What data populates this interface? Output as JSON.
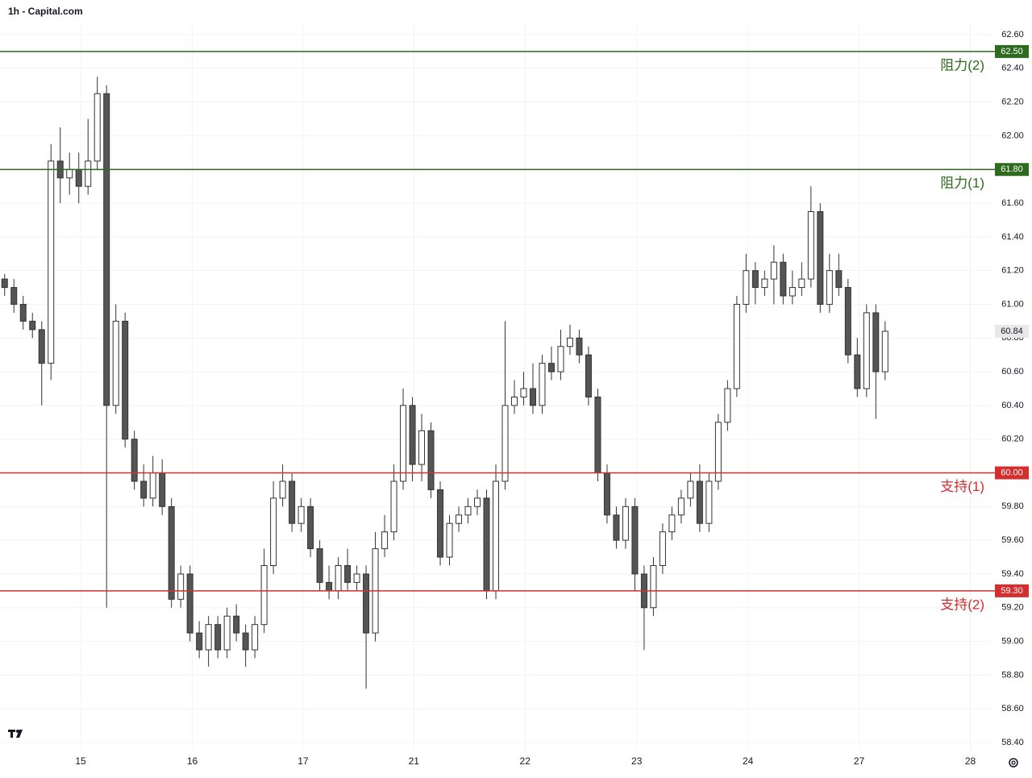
{
  "chart_data": {
    "type": "candlestick",
    "title": "1h - Capital.com",
    "x": [
      0,
      1,
      2,
      3,
      4,
      5,
      6,
      7,
      8,
      9,
      10,
      11,
      12,
      13,
      14,
      15,
      16,
      17,
      18,
      19,
      20,
      21,
      22,
      23,
      24,
      25,
      26,
      27,
      28,
      29,
      30,
      31,
      32,
      33,
      34,
      35,
      36,
      37,
      38,
      39,
      40,
      41,
      42,
      43,
      44,
      45,
      46,
      47,
      48,
      49,
      50,
      51,
      52,
      53,
      54,
      55,
      56,
      57,
      58,
      59,
      60,
      61,
      62,
      63,
      64,
      65,
      66,
      67,
      68,
      69,
      70,
      71,
      72,
      73,
      74,
      75,
      76,
      77,
      78,
      79,
      80,
      81,
      82,
      83,
      84,
      85,
      86,
      87,
      88,
      89,
      90,
      91,
      92,
      93,
      94,
      95
    ],
    "open": [
      61.15,
      61.1,
      61.0,
      60.9,
      60.85,
      60.65,
      61.85,
      61.75,
      61.8,
      61.7,
      61.85,
      62.25,
      60.4,
      60.9,
      60.2,
      59.95,
      59.85,
      60.0,
      59.8,
      59.25,
      59.4,
      59.05,
      58.95,
      59.1,
      58.95,
      59.15,
      59.05,
      58.95,
      59.1,
      59.45,
      59.85,
      59.95,
      59.7,
      59.8,
      59.55,
      59.35,
      59.3,
      59.45,
      59.35,
      59.4,
      59.05,
      59.55,
      59.65,
      59.95,
      60.4,
      60.05,
      60.25,
      59.9,
      59.5,
      59.7,
      59.75,
      59.8,
      59.85,
      59.3,
      59.95,
      60.4,
      60.45,
      60.5,
      60.4,
      60.65,
      60.6,
      60.75,
      60.8,
      60.7,
      60.45,
      60.0,
      59.75,
      59.6,
      59.8,
      59.4,
      59.2,
      59.45,
      59.65,
      59.75,
      59.85,
      59.95,
      59.7,
      59.95,
      60.3,
      60.5,
      61.0,
      61.2,
      61.1,
      61.15,
      61.25,
      61.05,
      61.1,
      61.15,
      61.55,
      61.0,
      61.2,
      61.1,
      60.7,
      60.5,
      60.95,
      60.6
    ],
    "high": [
      61.18,
      61.15,
      61.05,
      60.95,
      60.9,
      61.95,
      62.05,
      61.9,
      61.9,
      62.1,
      62.35,
      62.3,
      61.0,
      60.95,
      60.25,
      60.05,
      60.1,
      60.08,
      59.85,
      59.45,
      59.45,
      59.12,
      59.15,
      59.15,
      59.2,
      59.22,
      59.1,
      59.15,
      59.55,
      59.95,
      60.05,
      60.0,
      59.85,
      59.85,
      59.6,
      59.45,
      59.5,
      59.55,
      59.45,
      59.45,
      59.65,
      59.75,
      60.05,
      60.5,
      60.45,
      60.35,
      60.3,
      59.95,
      59.75,
      59.8,
      59.85,
      59.9,
      59.9,
      60.05,
      60.9,
      60.55,
      60.6,
      60.65,
      60.7,
      60.75,
      60.85,
      60.88,
      60.85,
      60.75,
      60.5,
      60.05,
      59.8,
      59.85,
      59.85,
      59.45,
      59.5,
      59.7,
      59.8,
      59.9,
      60.0,
      60.05,
      60.0,
      60.35,
      60.55,
      61.05,
      61.3,
      61.25,
      61.2,
      61.35,
      61.3,
      61.2,
      61.25,
      61.7,
      61.6,
      61.3,
      61.3,
      61.15,
      60.8,
      61.0,
      61.0,
      60.9
    ],
    "low": [
      61.05,
      60.95,
      60.85,
      60.8,
      60.4,
      60.55,
      61.6,
      61.65,
      61.6,
      61.65,
      61.8,
      59.2,
      60.35,
      60.15,
      59.9,
      59.8,
      59.8,
      59.75,
      59.2,
      59.2,
      59.0,
      58.9,
      58.85,
      58.9,
      58.9,
      59.0,
      58.85,
      58.9,
      59.05,
      59.4,
      59.8,
      59.65,
      59.65,
      59.5,
      59.3,
      59.25,
      59.25,
      59.3,
      59.3,
      58.72,
      59.0,
      59.5,
      59.6,
      59.9,
      59.95,
      59.95,
      59.85,
      59.45,
      59.45,
      59.65,
      59.7,
      59.75,
      59.25,
      59.25,
      59.9,
      60.35,
      60.4,
      60.35,
      60.35,
      60.55,
      60.55,
      60.7,
      60.65,
      60.4,
      59.95,
      59.7,
      59.55,
      59.55,
      59.3,
      58.95,
      59.15,
      59.4,
      59.6,
      59.7,
      59.8,
      59.65,
      59.65,
      59.9,
      60.25,
      60.45,
      60.95,
      61.0,
      61.05,
      61.0,
      61.0,
      61.0,
      61.05,
      61.1,
      60.95,
      60.95,
      61.05,
      60.65,
      60.45,
      60.45,
      60.32,
      60.55
    ],
    "close": [
      61.1,
      61.0,
      60.9,
      60.85,
      60.65,
      61.85,
      61.75,
      61.8,
      61.7,
      61.85,
      62.25,
      60.4,
      60.9,
      60.2,
      59.95,
      59.85,
      60.0,
      59.8,
      59.25,
      59.4,
      59.05,
      58.95,
      59.1,
      58.95,
      59.15,
      59.05,
      58.95,
      59.1,
      59.45,
      59.85,
      59.95,
      59.7,
      59.8,
      59.55,
      59.35,
      59.3,
      59.45,
      59.35,
      59.4,
      59.05,
      59.55,
      59.65,
      59.95,
      60.4,
      60.05,
      60.25,
      59.9,
      59.5,
      59.7,
      59.75,
      59.8,
      59.85,
      59.3,
      59.95,
      60.4,
      60.45,
      60.5,
      60.4,
      60.65,
      60.6,
      60.75,
      60.8,
      60.7,
      60.45,
      60.0,
      59.75,
      59.6,
      59.8,
      59.4,
      59.2,
      59.45,
      59.65,
      59.75,
      59.85,
      59.95,
      59.7,
      59.95,
      60.3,
      60.5,
      61.0,
      61.2,
      61.1,
      61.15,
      61.25,
      61.05,
      61.1,
      61.15,
      61.55,
      61.0,
      61.2,
      61.1,
      60.7,
      60.5,
      60.95,
      60.6,
      60.84
    ],
    "xlim": [
      -0.5,
      106.5
    ],
    "xticks": [
      {
        "value": 8.2,
        "label": "15"
      },
      {
        "value": 20.25,
        "label": "16"
      },
      {
        "value": 32.2,
        "label": "17"
      },
      {
        "value": 44.15,
        "label": "21"
      },
      {
        "value": 56.15,
        "label": "22"
      },
      {
        "value": 68.2,
        "label": "23"
      },
      {
        "value": 80.2,
        "label": "24"
      },
      {
        "value": 92.2,
        "label": "27"
      },
      {
        "value": 104.2,
        "label": "28"
      }
    ],
    "ylim": [
      58.4,
      62.6
    ],
    "yticks": [
      {
        "value": 58.4,
        "label": "58.40"
      },
      {
        "value": 58.6,
        "label": "58.60"
      },
      {
        "value": 58.8,
        "label": "58.80"
      },
      {
        "value": 59.0,
        "label": "59.00"
      },
      {
        "value": 59.2,
        "label": "59.20"
      },
      {
        "value": 59.4,
        "label": "59.40"
      },
      {
        "value": 59.6,
        "label": "59.60"
      },
      {
        "value": 59.8,
        "label": "59.80"
      },
      {
        "value": 60.0,
        "label": "60.00"
      },
      {
        "value": 60.2,
        "label": "60.20"
      },
      {
        "value": 60.4,
        "label": "60.40"
      },
      {
        "value": 60.6,
        "label": "60.60"
      },
      {
        "value": 60.8,
        "label": "60.80"
      },
      {
        "value": 61.0,
        "label": "61.00"
      },
      {
        "value": 61.2,
        "label": "61.20"
      },
      {
        "value": 61.4,
        "label": "61.40"
      },
      {
        "value": 61.6,
        "label": "61.60"
      },
      {
        "value": 61.8,
        "label": "61.80"
      },
      {
        "value": 62.0,
        "label": "62.00"
      },
      {
        "value": 62.2,
        "label": "62.20"
      },
      {
        "value": 62.4,
        "label": "62.40"
      },
      {
        "value": 62.6,
        "label": "62.60"
      }
    ],
    "grid": true,
    "up_color": "#ffffff",
    "down_color": "#555555",
    "wick_color": "#333333",
    "levels": {
      "names": [
        "阻力(2)",
        "阻力(1)",
        "支持(1)",
        "支持(2)"
      ],
      "values": [
        62.5,
        61.8,
        60.0,
        59.3
      ],
      "value_labels": [
        "62.50",
        "61.80",
        "60.00",
        "59.30"
      ],
      "colors": [
        "#2e6b1f",
        "#2e6b1f",
        "#d32f2f",
        "#d32f2f"
      ]
    },
    "last": 60.84,
    "last_label": "60.84"
  }
}
